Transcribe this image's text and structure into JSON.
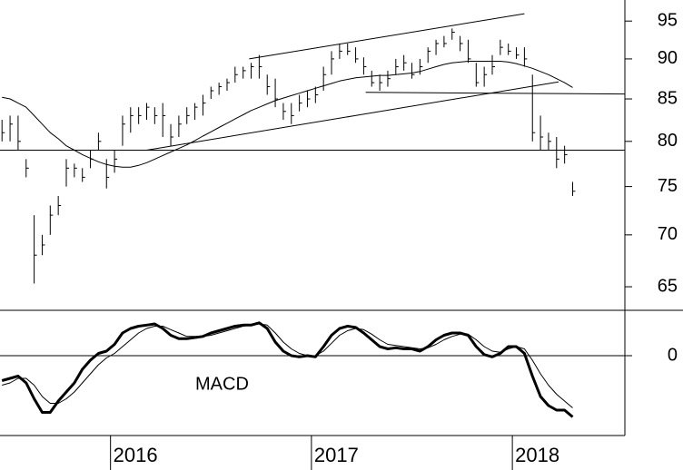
{
  "chart_data": {
    "type": "ohlc",
    "log_scale": true,
    "color": "#000000",
    "xlim": [
      2015.45,
      2018.56
    ],
    "xticks": [
      2016,
      2017,
      2018
    ],
    "ylim": [
      62.85,
      97.9
    ],
    "yticks": [
      65,
      70,
      75,
      80,
      85,
      90,
      95
    ],
    "x": [
      2015.46,
      2015.5,
      2015.54,
      2015.58,
      2015.62,
      2015.66,
      2015.7,
      2015.74,
      2015.78,
      2015.82,
      2015.86,
      2015.9,
      2015.94,
      2015.98,
      2016.02,
      2016.06,
      2016.1,
      2016.14,
      2016.18,
      2016.22,
      2016.26,
      2016.3,
      2016.34,
      2016.38,
      2016.42,
      2016.46,
      2016.5,
      2016.54,
      2016.58,
      2016.62,
      2016.66,
      2016.7,
      2016.74,
      2016.78,
      2016.82,
      2016.86,
      2016.9,
      2016.94,
      2016.98,
      2017.02,
      2017.06,
      2017.1,
      2017.14,
      2017.18,
      2017.22,
      2017.26,
      2017.3,
      2017.34,
      2017.38,
      2017.42,
      2017.46,
      2017.5,
      2017.54,
      2017.58,
      2017.62,
      2017.66,
      2017.7,
      2017.74,
      2017.78,
      2017.82,
      2017.86,
      2017.9,
      2017.94,
      2017.98,
      2018.02,
      2018.06,
      2018.1,
      2018.14,
      2018.18,
      2018.22,
      2018.26,
      2018.3
    ],
    "high": [
      82.5,
      83,
      83,
      78,
      72,
      70,
      73,
      74,
      78,
      77.5,
      77,
      79,
      81,
      78,
      79,
      83,
      84,
      84,
      84.5,
      84,
      84.5,
      82,
      83,
      84,
      84.5,
      85.5,
      86.5,
      87,
      87.5,
      89,
      89,
      89.5,
      90.5,
      88,
      87.5,
      84.5,
      84.5,
      85.5,
      86,
      86.5,
      89,
      91,
      92,
      92,
      91.5,
      90.2,
      88.5,
      88,
      88.5,
      90,
      90.5,
      89.5,
      90,
      91.5,
      92.5,
      93,
      94,
      93,
      92.5,
      89.5,
      89,
      90.5,
      92.5,
      92,
      91.5,
      91.5,
      88,
      83,
      81,
      80.5,
      79.5,
      75.5
    ],
    "low": [
      80,
      80,
      79,
      76,
      65.3,
      68,
      70,
      72,
      75,
      76,
      75.5,
      77,
      79,
      74.8,
      76.5,
      79.5,
      81,
      82,
      82.5,
      82,
      80.5,
      79.5,
      80.5,
      82,
      82.5,
      83,
      85,
      85.5,
      86,
      87,
      87.5,
      87.5,
      87.5,
      85.5,
      84,
      82.5,
      82,
      83.5,
      84,
      84.5,
      86,
      88,
      90,
      90.5,
      89.5,
      88,
      86.5,
      86,
      86.5,
      88,
      88.5,
      87.5,
      88,
      89.5,
      90.5,
      91.5,
      92.5,
      91,
      89.5,
      86.5,
      86.5,
      88,
      90.5,
      90.5,
      90,
      89,
      80,
      79,
      79,
      77,
      77.5,
      74
    ],
    "close": [
      81,
      82,
      80,
      77,
      68,
      69,
      72,
      73,
      77,
      77,
      76,
      78,
      80,
      76,
      78,
      82,
      83,
      83,
      84,
      83,
      83,
      80.5,
      82,
      83,
      84,
      84.5,
      86,
      86.5,
      87,
      88,
      88.5,
      89,
      89,
      86.5,
      85,
      83.5,
      83,
      84.5,
      85,
      85.5,
      88,
      90,
      91,
      91,
      90,
      89,
      87,
      87,
      87.5,
      89,
      89.5,
      88,
      89,
      91,
      92,
      92,
      93.5,
      92,
      90,
      87,
      88,
      89,
      91.5,
      91,
      90.5,
      90,
      81,
      80.5,
      80,
      78,
      78.5,
      74.5
    ],
    "ma": [
      85.2,
      85,
      84.5,
      84,
      83,
      82,
      81,
      80.3,
      79.5,
      79,
      78.5,
      78.1,
      77.7,
      77.4,
      77.2,
      77.1,
      77.1,
      77.3,
      77.6,
      78,
      78.4,
      78.8,
      79.2,
      79.6,
      80.1,
      80.6,
      81.1,
      81.6,
      82.1,
      82.6,
      83.1,
      83.6,
      84,
      84.4,
      84.8,
      85.1,
      85.4,
      85.7,
      86,
      86.3,
      86.6,
      86.9,
      87.2,
      87.4,
      87.6,
      87.7,
      87.8,
      87.9,
      87.9,
      88,
      88.1,
      88.2,
      88.4,
      88.7,
      89,
      89.3,
      89.5,
      89.6,
      89.7,
      89.7,
      89.7,
      89.7,
      89.7,
      89.6,
      89.4,
      89.1,
      88.8,
      88.4,
      88,
      87.5,
      87,
      86.4
    ],
    "trendlines": [
      {
        "x": [
          2016.69,
          2018.06
        ],
        "y": [
          90,
          96
        ]
      },
      {
        "x": [
          2016.18,
          2018.23
        ],
        "y": [
          79,
          87.1
        ]
      },
      {
        "x": [
          2017.27,
          2018.56
        ],
        "y": [
          85.8,
          85.6
        ]
      },
      {
        "x": [
          2015.45,
          2018.56
        ],
        "y": [
          79,
          79
        ]
      }
    ],
    "macd": {
      "label": "MACD",
      "ylim": [
        -3.52,
        2
      ],
      "yticks": [
        0
      ],
      "macd": [
        -1.1,
        -1,
        -0.9,
        -1.2,
        -1.9,
        -2.5,
        -2.5,
        -2,
        -1.6,
        -1.2,
        -0.6,
        -0.2,
        0.1,
        0.2,
        0.5,
        1,
        1.2,
        1.3,
        1.35,
        1.4,
        1.2,
        0.9,
        0.75,
        0.75,
        0.8,
        0.85,
        1,
        1.1,
        1.2,
        1.3,
        1.35,
        1.35,
        1.45,
        1.2,
        0.6,
        0.2,
        0,
        -0.05,
        0,
        -0.05,
        0.4,
        0.9,
        1.2,
        1.3,
        1.25,
        1,
        0.7,
        0.4,
        0.3,
        0.35,
        0.3,
        0.3,
        0.2,
        0.4,
        0.7,
        0.9,
        1,
        1,
        0.9,
        0.4,
        0.05,
        -0.05,
        0.1,
        0.4,
        0.4,
        0.1,
        -0.9,
        -1.8,
        -2.2,
        -2.4,
        -2.4,
        -2.7
      ],
      "signal": [
        -1.3,
        -1.2,
        -1,
        -1,
        -1.3,
        -1.8,
        -2.1,
        -2.1,
        -1.9,
        -1.6,
        -1.2,
        -0.8,
        -0.4,
        -0.1,
        0.1,
        0.4,
        0.7,
        1,
        1.2,
        1.3,
        1.3,
        1.15,
        1,
        0.85,
        0.85,
        0.85,
        0.9,
        1,
        1.1,
        1.2,
        1.3,
        1.35,
        1.4,
        1.35,
        1,
        0.6,
        0.3,
        0.1,
        0,
        0,
        0.2,
        0.55,
        0.9,
        1.1,
        1.2,
        1.15,
        0.95,
        0.7,
        0.5,
        0.45,
        0.4,
        0.35,
        0.3,
        0.35,
        0.5,
        0.7,
        0.85,
        0.95,
        0.95,
        0.7,
        0.4,
        0.2,
        0.15,
        0.3,
        0.4,
        0.3,
        -0.2,
        -0.8,
        -1.3,
        -1.7,
        -2,
        -2.3
      ]
    }
  }
}
